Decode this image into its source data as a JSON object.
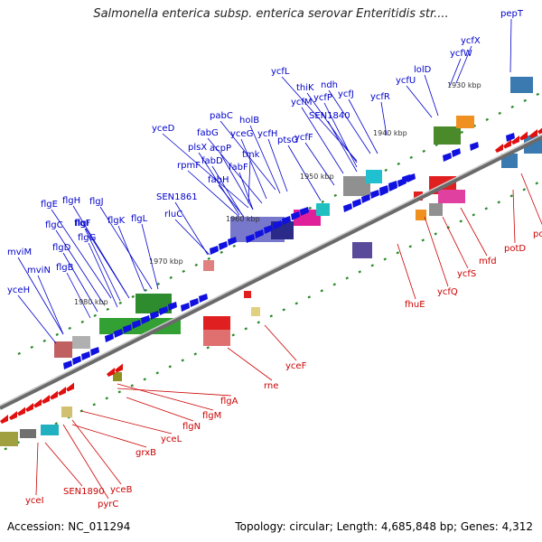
{
  "title": "Salmonella enterica subsp. enterica serovar Enteritidis str....",
  "footer": {
    "accession": "Accession: NC_011294",
    "topology": "Topology: circular; Length: 4,685,848 bp; Genes: 4,312"
  },
  "colors": {
    "forward_gene": "#1010e0",
    "reverse_gene": "#e01010",
    "backbone": "#6a6a6a"
  },
  "kbp_ticks": [
    "1930 kbp",
    "1940 kbp",
    "1950 kbp",
    "1960 kbp",
    "1970 kbp",
    "1980 kbp"
  ],
  "forward_labels": [
    "pepT",
    "ycfX",
    "ycfW",
    "lolD",
    "ycfU",
    "ndh",
    "ycfL",
    "thiK",
    "ycfJ",
    "ycfM",
    "ycfP",
    "ycfR",
    "SEN1840",
    "pabC",
    "holB",
    "fabG",
    "yceG",
    "ycfH",
    "yceD",
    "acpP",
    "plsX",
    "tmk",
    "ptsG",
    "ycfF",
    "rpmF",
    "fabD",
    "fabF",
    "fabH",
    "SEN1861",
    "rluC",
    "flgE",
    "flgH",
    "flgJ",
    "flgI",
    "flgC",
    "flgF",
    "flgK",
    "flgL",
    "flgG",
    "flgD",
    "mviM",
    "flgB",
    "mviN",
    "yceH"
  ],
  "reverse_labels": [
    "potC",
    "potD",
    "mfd",
    "ycfS",
    "ycfQ",
    "fhuE",
    "yceF",
    "rne",
    "flgA",
    "flgM",
    "flgN",
    "yceL",
    "grxB",
    "yceB",
    "yceI",
    "SEN1890",
    "pyrC"
  ]
}
